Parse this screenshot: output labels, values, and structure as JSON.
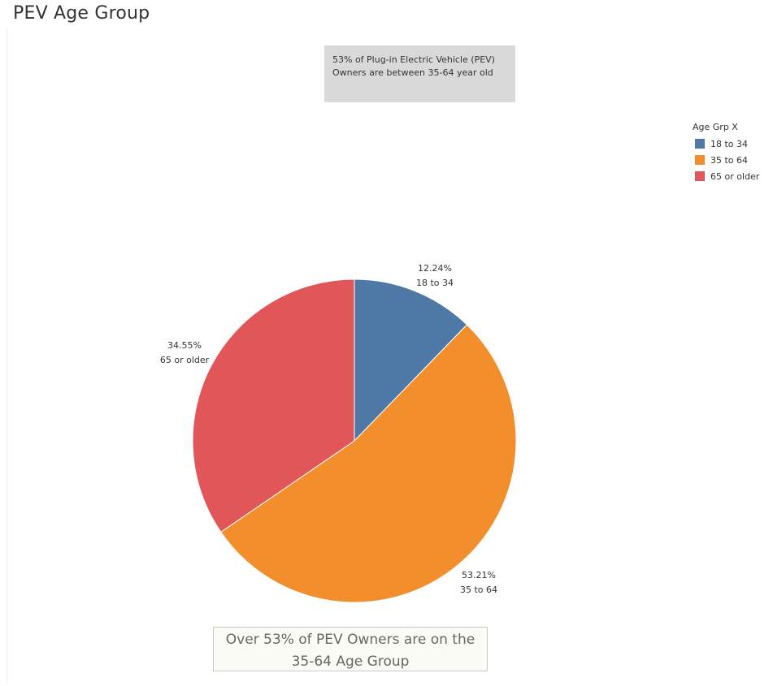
{
  "page": {
    "title": "PEV Age Group",
    "annotation_line1": "53% of Plug-in Electric Vehicle (PEV)",
    "annotation_line2": "Owners are between 35-64 year old",
    "caption_line1": "Over 53% of PEV Owners are on the",
    "caption_line2": "35-64 Age Group"
  },
  "legend": {
    "title": "Age Grp X",
    "items": [
      {
        "label": "18 to 34",
        "color": "#4e79a7"
      },
      {
        "label": "35 to 64",
        "color": "#f28e2b"
      },
      {
        "label": "65 or older",
        "color": "#e15759"
      }
    ]
  },
  "chart_data": {
    "type": "pie",
    "title": "",
    "categories": [
      "18 to 34",
      "35 to 64",
      "65 or older"
    ],
    "values": [
      12.24,
      53.21,
      34.55
    ],
    "value_labels": [
      "12.24%",
      "53.21%",
      "34.55%"
    ],
    "colors": [
      "#4e79a7",
      "#f28e2b",
      "#e15759"
    ],
    "legend_placement": "top-right"
  }
}
